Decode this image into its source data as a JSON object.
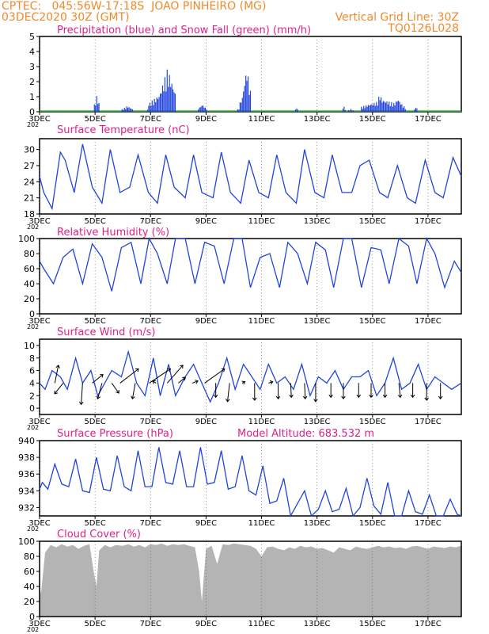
{
  "header": {
    "line1_left": "CPTEC:   045:56W-17:18S  JOAO PINHEIRO (MG)",
    "line2_left": "03DEC2020 30Z (GMT)",
    "line2_right": "Vertical Grid Line: 30Z",
    "line3_right": "TQ0126L028"
  },
  "colors": {
    "header": "#f08a2c",
    "title": "#e0208a",
    "line": "#2244dd",
    "snow": "#22aa22",
    "cloud": "#b4b4b4",
    "barb": "#000000",
    "grid": "#555555"
  },
  "x_axis": {
    "ticks": [
      "3DEC",
      "5DEC",
      "7DEC",
      "9DEC",
      "11DEC",
      "13DEC",
      "15DEC",
      "17DEC"
    ],
    "year_hint": "202"
  },
  "chart_data": [
    {
      "id": "precip",
      "type": "bar",
      "title": "Precipitation (blue) and Snow Fall (green) (mm/h)",
      "ylim": [
        0,
        5
      ],
      "yticks": [
        0,
        1,
        2,
        3,
        4,
        5
      ],
      "x_start_day": 0,
      "x_end_day": 15.2,
      "step_hours": 1,
      "series": [
        {
          "name": "Precipitation",
          "color": "#2244dd",
          "events": [
            {
              "start": 1.95,
              "end": 2.15,
              "peak": 1.1
            },
            {
              "start": 2.95,
              "end": 3.35,
              "peak": 0.4
            },
            {
              "start": 3.85,
              "end": 4.2,
              "peak": 0.3
            },
            {
              "start": 3.9,
              "end": 4.9,
              "peak": 1.3
            },
            {
              "start": 4.3,
              "end": 4.9,
              "peak": 2.9
            },
            {
              "start": 5.7,
              "end": 6.0,
              "peak": 0.5
            },
            {
              "start": 7.1,
              "end": 7.3,
              "peak": 0.3
            },
            {
              "start": 7.2,
              "end": 7.6,
              "peak": 1.5
            },
            {
              "start": 7.3,
              "end": 7.6,
              "peak": 3.0
            },
            {
              "start": 9.2,
              "end": 9.3,
              "peak": 0.3
            },
            {
              "start": 10.9,
              "end": 11.0,
              "peak": 0.4
            },
            {
              "start": 11.1,
              "end": 11.3,
              "peak": 0.2
            },
            {
              "start": 11.55,
              "end": 13.2,
              "peak": 0.8
            },
            {
              "start": 12.1,
              "end": 12.4,
              "peak": 1.2
            },
            {
              "start": 12.7,
              "end": 13.1,
              "peak": 0.9
            },
            {
              "start": 13.5,
              "end": 13.6,
              "peak": 0.4
            }
          ]
        },
        {
          "name": "Snow Fall",
          "color": "#22aa22",
          "values": "0 throughout"
        }
      ]
    },
    {
      "id": "temp",
      "type": "line",
      "title": "Surface Temperature (nC)",
      "ylim": [
        18,
        32
      ],
      "yticks": [
        18,
        21,
        24,
        27,
        30
      ],
      "x": [
        0,
        0.15,
        0.45,
        0.75,
        0.92,
        1.25,
        1.55,
        1.9,
        2.25,
        2.55,
        2.9,
        3.25,
        3.55,
        3.92,
        4.25,
        4.55,
        4.85,
        5.25,
        5.55,
        5.85,
        6.25,
        6.55,
        6.88,
        7.25,
        7.55,
        7.9,
        8.25,
        8.55,
        8.88,
        9.25,
        9.55,
        9.92,
        10.25,
        10.55,
        10.9,
        11.25,
        11.55,
        11.88,
        12.25,
        12.55,
        12.9,
        13.25,
        13.55,
        13.9,
        14.25,
        14.55,
        14.9,
        15.2
      ],
      "values": [
        25,
        22,
        19,
        29.5,
        28,
        22,
        31,
        23,
        20,
        30,
        22,
        23,
        29,
        22,
        20,
        29,
        23,
        21,
        29,
        22,
        21,
        29.5,
        22,
        20,
        28,
        22,
        21,
        29,
        22,
        20,
        30,
        22,
        21,
        29,
        22,
        22,
        27,
        28,
        22,
        21,
        27,
        21,
        20,
        28,
        22,
        21,
        28.5,
        25
      ]
    },
    {
      "id": "rh",
      "type": "line",
      "title": "Relative Humidity (%)",
      "ylim": [
        0,
        100
      ],
      "yticks": [
        0,
        20,
        40,
        60,
        80,
        100
      ],
      "x": [
        0,
        0.15,
        0.5,
        0.85,
        1.2,
        1.55,
        1.9,
        2.25,
        2.6,
        2.95,
        3.3,
        3.65,
        3.95,
        4.25,
        4.6,
        4.9,
        5.25,
        5.6,
        5.95,
        6.3,
        6.65,
        7.0,
        7.3,
        7.6,
        7.95,
        8.3,
        8.65,
        8.95,
        9.3,
        9.65,
        9.95,
        10.3,
        10.6,
        10.95,
        11.25,
        11.6,
        11.95,
        12.3,
        12.6,
        12.95,
        13.3,
        13.6,
        13.95,
        14.25,
        14.6,
        14.95,
        15.2
      ],
      "values": [
        70,
        60,
        40,
        75,
        86,
        40,
        93,
        75,
        30,
        88,
        95,
        40,
        100,
        80,
        40,
        100,
        100,
        40,
        95,
        90,
        40,
        100,
        100,
        35,
        75,
        80,
        35,
        95,
        80,
        40,
        95,
        85,
        35,
        100,
        100,
        35,
        88,
        85,
        40,
        100,
        90,
        40,
        100,
        80,
        35,
        70,
        55
      ]
    },
    {
      "id": "wind",
      "type": "line",
      "title": "Surface Wind (m/s)",
      "ylim": [
        -1,
        11
      ],
      "yticks": [
        0,
        2,
        4,
        6,
        8,
        10
      ],
      "x": [
        0,
        0.2,
        0.45,
        0.75,
        1.0,
        1.3,
        1.55,
        1.85,
        2.1,
        2.35,
        2.6,
        2.95,
        3.2,
        3.5,
        3.8,
        4.1,
        4.35,
        4.65,
        4.9,
        5.25,
        5.55,
        5.85,
        6.15,
        6.45,
        6.75,
        7.05,
        7.35,
        7.65,
        7.95,
        8.25,
        8.55,
        8.85,
        9.15,
        9.45,
        9.75,
        10.05,
        10.35,
        10.65,
        10.95,
        11.25,
        11.55,
        11.85,
        12.15,
        12.45,
        12.75,
        13.05,
        13.35,
        13.65,
        13.95,
        14.25,
        14.55,
        14.85,
        15.2
      ],
      "values": [
        4,
        3,
        6,
        5,
        3,
        8,
        4,
        6,
        2,
        4,
        6,
        5,
        9,
        4,
        2,
        8,
        2,
        7,
        2,
        5,
        7,
        4,
        1,
        4,
        8,
        3,
        7,
        5,
        3,
        7,
        4,
        5,
        3,
        7,
        2,
        5,
        4,
        6,
        3,
        5,
        5,
        6,
        2,
        4,
        8,
        3,
        4,
        7,
        3,
        5,
        4,
        3,
        4
      ],
      "barbs": [
        {
          "day": 0.55,
          "u": 0.5,
          "v": 2.5
        },
        {
          "day": 0.85,
          "u": -1.2,
          "v": -1.5
        },
        {
          "day": 1.55,
          "u": -0.2,
          "v": -3.0
        },
        {
          "day": 1.9,
          "u": 1.5,
          "v": 1.2
        },
        {
          "day": 2.25,
          "u": -0.6,
          "v": -2.2
        },
        {
          "day": 2.6,
          "u": 1.0,
          "v": -1.4
        },
        {
          "day": 2.9,
          "u": 2.6,
          "v": 2.0
        },
        {
          "day": 3.45,
          "u": -0.4,
          "v": -2.2
        },
        {
          "day": 3.95,
          "u": 3.0,
          "v": 2.0
        },
        {
          "day": 4.2,
          "u": -0.5,
          "v": 0.3
        },
        {
          "day": 4.6,
          "u": 2.2,
          "v": 2.5
        },
        {
          "day": 5.0,
          "u": 1.0,
          "v": 0.8
        },
        {
          "day": 5.5,
          "u": 0.8,
          "v": 0.3
        },
        {
          "day": 5.95,
          "u": 2.8,
          "v": 2.0
        },
        {
          "day": 6.35,
          "u": 0.0,
          "v": -2.0
        },
        {
          "day": 6.85,
          "u": -0.3,
          "v": -2.6
        },
        {
          "day": 7.3,
          "u": 0.4,
          "v": 0.2
        },
        {
          "day": 7.75,
          "u": 0.0,
          "v": -2.4
        },
        {
          "day": 8.25,
          "u": 0.6,
          "v": 0.2
        },
        {
          "day": 8.6,
          "u": 0.0,
          "v": -2.2
        },
        {
          "day": 9.05,
          "u": 0.1,
          "v": -2.0
        },
        {
          "day": 9.55,
          "u": 0.1,
          "v": -2.2
        },
        {
          "day": 9.95,
          "u": 0.0,
          "v": -2.6
        },
        {
          "day": 10.5,
          "u": 0.0,
          "v": -2.0
        },
        {
          "day": 10.95,
          "u": 0.0,
          "v": -2.2
        },
        {
          "day": 11.5,
          "u": 0.0,
          "v": -2.0
        },
        {
          "day": 11.95,
          "u": 0.0,
          "v": -2.0
        },
        {
          "day": 12.45,
          "u": 0.0,
          "v": -2.0
        },
        {
          "day": 12.95,
          "u": 0.2,
          "v": -2.0
        },
        {
          "day": 13.45,
          "u": 0.0,
          "v": -2.0
        },
        {
          "day": 13.95,
          "u": 0.0,
          "v": -2.4
        },
        {
          "day": 14.45,
          "u": 0.0,
          "v": -2.2
        }
      ]
    },
    {
      "id": "pres",
      "type": "line",
      "title": "Surface Pressure (hPa)",
      "subtitle": "Model Altitude: 683.532 m",
      "ylim": [
        931,
        940
      ],
      "yticks": [
        932,
        934,
        936,
        938,
        940
      ],
      "x": [
        0,
        0.1,
        0.3,
        0.55,
        0.8,
        1.05,
        1.3,
        1.55,
        1.8,
        2.05,
        2.3,
        2.55,
        2.8,
        3.05,
        3.3,
        3.55,
        3.8,
        4.05,
        4.3,
        4.55,
        4.8,
        5.05,
        5.3,
        5.55,
        5.8,
        6.05,
        6.3,
        6.55,
        6.8,
        7.05,
        7.3,
        7.55,
        7.8,
        8.05,
        8.3,
        8.55,
        8.8,
        9.05,
        9.3,
        9.55,
        9.8,
        10.05,
        10.3,
        10.55,
        10.8,
        11.05,
        11.3,
        11.55,
        11.8,
        12.05,
        12.3,
        12.55,
        12.8,
        13.05,
        13.3,
        13.55,
        13.8,
        14.05,
        14.3,
        14.55,
        14.8,
        15.05,
        15.2
      ],
      "values": [
        934.2,
        935,
        934.2,
        937.2,
        934.8,
        934.5,
        937.8,
        934,
        933.8,
        938,
        934.2,
        934,
        938.2,
        934.5,
        934,
        938.8,
        934.5,
        934.5,
        939.2,
        935,
        934.8,
        938.8,
        934.5,
        934.5,
        939.2,
        934.8,
        935,
        938.8,
        934.2,
        934.5,
        938.2,
        934,
        933.5,
        937,
        932.5,
        932.8,
        935.5,
        931,
        932.5,
        934,
        931,
        931.8,
        934,
        931.5,
        931.8,
        934.3,
        931,
        932,
        935.5,
        932.2,
        931.2,
        935,
        931,
        931,
        934,
        931.5,
        931.2,
        933.5,
        931,
        931,
        933,
        931.2,
        931
      ]
    },
    {
      "id": "cloud",
      "type": "area",
      "title": "Cloud Cover (%)",
      "ylim": [
        0,
        100
      ],
      "yticks": [
        0,
        20,
        40,
        60,
        80,
        100
      ],
      "x": [
        0,
        0.05,
        0.2,
        0.4,
        0.6,
        0.8,
        1.0,
        1.2,
        1.4,
        1.6,
        1.8,
        1.95,
        2.05,
        2.15,
        2.35,
        2.55,
        2.75,
        3.0,
        3.2,
        3.4,
        3.6,
        3.8,
        4.0,
        4.2,
        4.4,
        4.6,
        4.8,
        5.0,
        5.2,
        5.4,
        5.6,
        5.75,
        5.85,
        6.0,
        6.2,
        6.4,
        6.6,
        6.8,
        7.0,
        7.2,
        7.4,
        7.6,
        7.8,
        8.0,
        8.2,
        8.4,
        8.6,
        8.8,
        9.0,
        9.2,
        9.4,
        9.6,
        9.8,
        10.0,
        10.2,
        10.4,
        10.6,
        10.8,
        11.0,
        11.2,
        11.4,
        11.6,
        11.8,
        12.0,
        12.2,
        12.4,
        12.6,
        12.8,
        13.0,
        13.2,
        13.4,
        13.6,
        13.8,
        14.0,
        14.2,
        14.4,
        14.6,
        14.8,
        15.0,
        15.2
      ],
      "values": [
        40,
        30,
        85,
        95,
        92,
        96,
        93,
        95,
        90,
        94,
        96,
        60,
        40,
        88,
        95,
        92,
        95,
        94,
        96,
        93,
        95,
        92,
        96,
        95,
        97,
        94,
        96,
        95,
        96,
        94,
        92,
        60,
        20,
        90,
        94,
        70,
        96,
        95,
        97,
        96,
        95,
        94,
        90,
        80,
        92,
        93,
        90,
        88,
        92,
        90,
        94,
        92,
        93,
        90,
        91,
        88,
        85,
        92,
        90,
        88,
        93,
        91,
        90,
        92,
        94,
        92,
        93,
        91,
        92,
        90,
        93,
        94,
        92,
        90,
        93,
        92,
        91,
        93,
        92,
        94
      ]
    }
  ]
}
